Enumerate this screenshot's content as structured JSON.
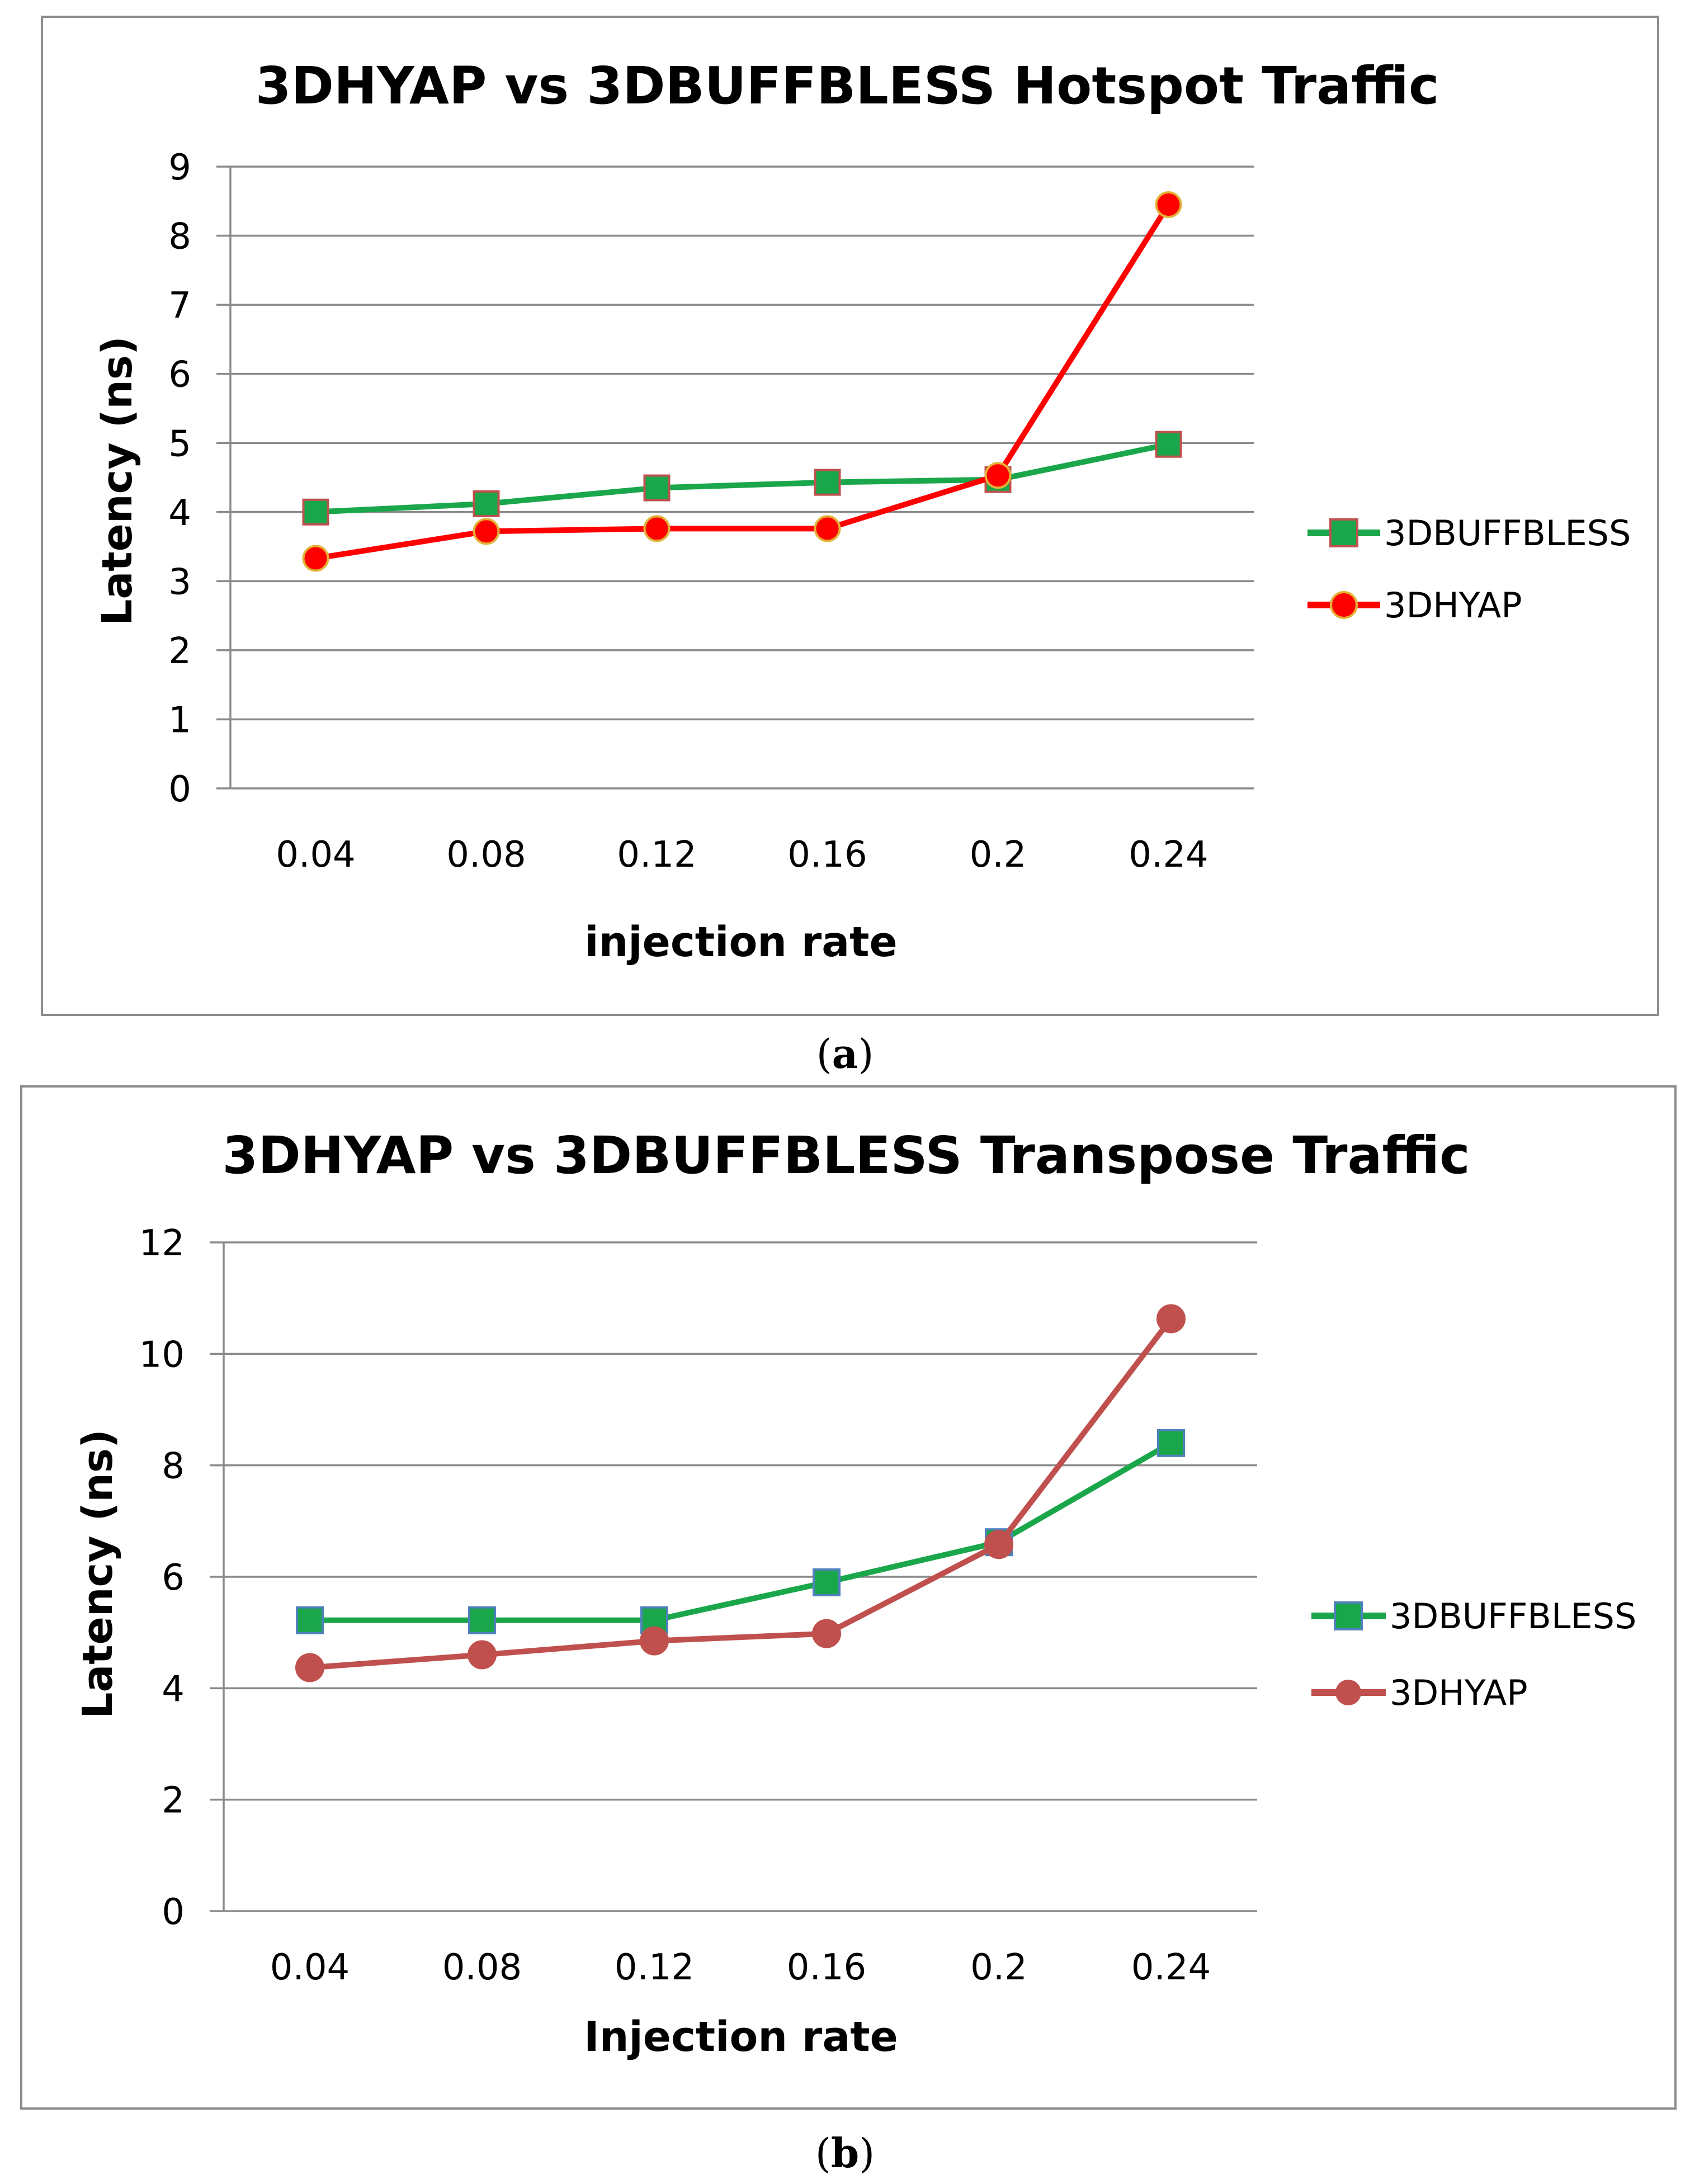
{
  "chart_data": [
    {
      "type": "line",
      "title": "3DHYAP vs 3DBUFFBLESS Hotspot Traffic",
      "xlabel": "injection rate",
      "ylabel": "Latency (ns)",
      "categories": [
        "0.04",
        "0.08",
        "0.12",
        "0.16",
        "0.2",
        "0.24"
      ],
      "yticks": [
        "0",
        "1",
        "2",
        "3",
        "4",
        "5",
        "6",
        "7",
        "8",
        "9"
      ],
      "ylim": [
        0,
        9
      ],
      "grid": true,
      "legend_position": "right",
      "caption": {
        "open": "(",
        "letter": "a",
        "close": ")"
      },
      "series": [
        {
          "name": "3DBUFFBLESS",
          "values": [
            4.0,
            4.12,
            4.35,
            4.43,
            4.47,
            4.98
          ],
          "color": "#1aa64a",
          "marker": "square",
          "marker_fill": "#1aa64a",
          "marker_stroke": "#c0504d"
        },
        {
          "name": "3DHYAP",
          "values": [
            3.33,
            3.72,
            3.76,
            3.76,
            4.53,
            8.45
          ],
          "color": "#ff0000",
          "marker": "circle",
          "marker_fill": "#ff0000",
          "marker_stroke": "#e2b238"
        }
      ]
    },
    {
      "type": "line",
      "title": "3DHYAP vs 3DBUFFBLESS Transpose Traffic",
      "xlabel": "Injection rate",
      "ylabel": "Latency (ns)",
      "categories": [
        "0.04",
        "0.08",
        "0.12",
        "0.16",
        "0.2",
        "0.24"
      ],
      "yticks": [
        "0",
        "2",
        "4",
        "6",
        "8",
        "10",
        "12"
      ],
      "ylim": [
        0,
        12
      ],
      "grid": true,
      "legend_position": "right",
      "caption": {
        "open": "(",
        "letter": "b",
        "close": ")"
      },
      "series": [
        {
          "name": "3DBUFFBLESS",
          "values": [
            5.22,
            5.22,
            5.22,
            5.9,
            6.62,
            8.4
          ],
          "color": "#1aa64a",
          "marker": "square",
          "marker_fill": "#1aa64a",
          "marker_stroke": "#4f81bd"
        },
        {
          "name": "3DHYAP",
          "values": [
            4.37,
            4.6,
            4.85,
            4.98,
            6.58,
            10.63
          ],
          "color": "#c0504d",
          "marker": "circle",
          "marker_fill": "#c0504d",
          "marker_stroke": "#c0504d"
        }
      ]
    }
  ]
}
